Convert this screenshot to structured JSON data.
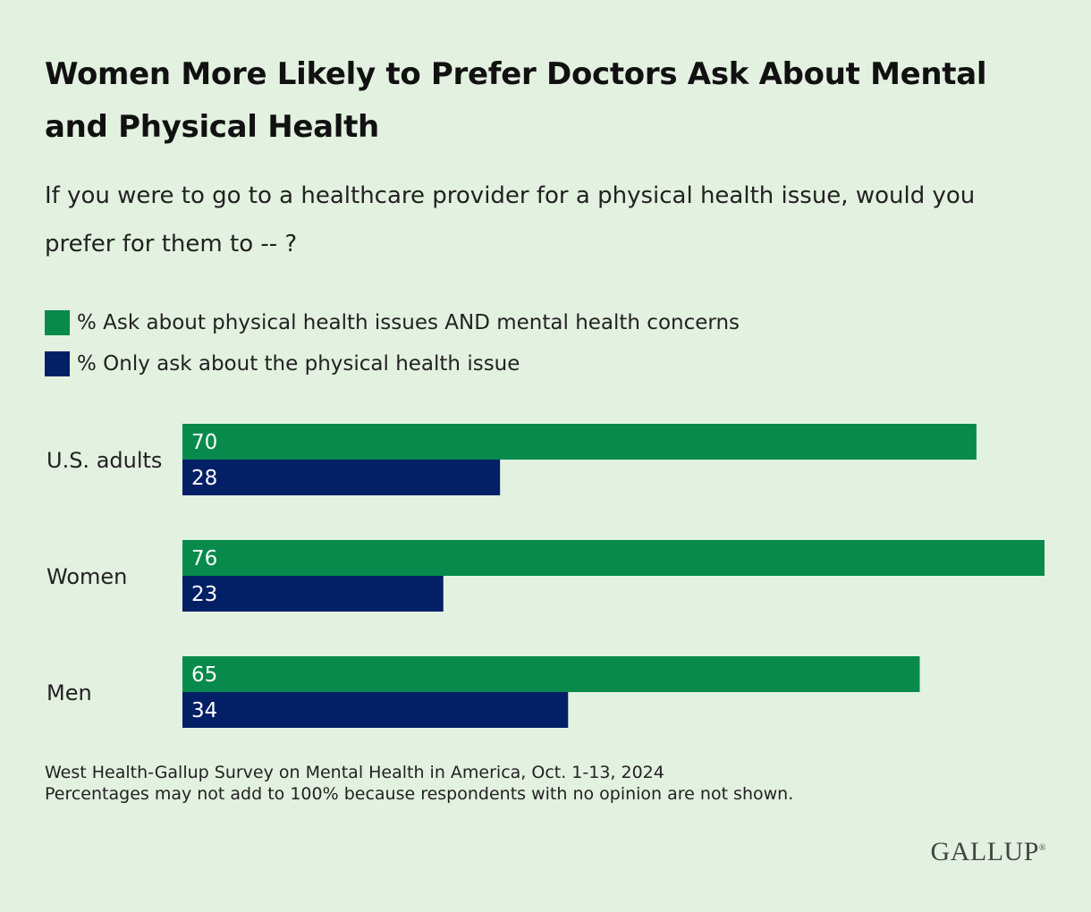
{
  "title": "Women More Likely to Prefer Doctors Ask About Mental and Physical Health",
  "subtitle": "If you were to go to a healthcare provider for a physical health issue, would you prefer for them to -- ?",
  "footer": {
    "source": "West Health-Gallup Survey on Mental Health in America, Oct. 1-13, 2024",
    "note": "Percentages may not add to 100% because respondents with no opinion are not shown."
  },
  "logo": "GALLUP",
  "colors": {
    "background": "#e3f1e0",
    "green": "#078a4c",
    "navy": "#031f66"
  },
  "chart_data": {
    "type": "bar",
    "orientation": "horizontal",
    "categories": [
      "U.S. adults",
      "Women",
      "Men"
    ],
    "series": [
      {
        "name": "% Ask about physical health issues AND mental health concerns",
        "values": [
          70,
          76,
          65
        ],
        "color": "#078a4c"
      },
      {
        "name": "% Only ask about the physical health issue",
        "values": [
          28,
          23,
          34
        ],
        "color": "#031f66"
      }
    ],
    "xlim": [
      0,
      76
    ],
    "legend": "top-left",
    "grid": false,
    "data_labels": true
  }
}
